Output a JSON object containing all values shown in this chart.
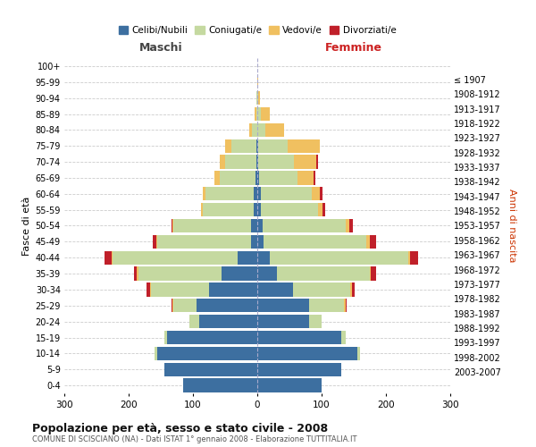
{
  "age_groups": [
    "0-4",
    "5-9",
    "10-14",
    "15-19",
    "20-24",
    "25-29",
    "30-34",
    "35-39",
    "40-44",
    "45-49",
    "50-54",
    "55-59",
    "60-64",
    "65-69",
    "70-74",
    "75-79",
    "80-84",
    "85-89",
    "90-94",
    "95-99",
    "100+"
  ],
  "birth_years": [
    "2003-2007",
    "1998-2002",
    "1993-1997",
    "1988-1992",
    "1983-1987",
    "1978-1982",
    "1973-1977",
    "1968-1972",
    "1963-1967",
    "1958-1962",
    "1953-1957",
    "1948-1952",
    "1943-1947",
    "1938-1942",
    "1933-1937",
    "1928-1932",
    "1923-1927",
    "1918-1922",
    "1913-1917",
    "1908-1912",
    "≤ 1907"
  ],
  "males": {
    "celibi": [
      115,
      145,
      155,
      140,
      90,
      95,
      75,
      55,
      30,
      10,
      10,
      5,
      5,
      3,
      2,
      2,
      0,
      0,
      0,
      0,
      0
    ],
    "coniugati": [
      0,
      0,
      5,
      5,
      15,
      35,
      90,
      130,
      195,
      145,
      120,
      80,
      75,
      55,
      48,
      38,
      8,
      2,
      1,
      0,
      0
    ],
    "vedovi": [
      0,
      0,
      0,
      0,
      0,
      2,
      2,
      2,
      2,
      2,
      2,
      3,
      5,
      8,
      8,
      10,
      5,
      2,
      0,
      0,
      0
    ],
    "divorziati": [
      0,
      0,
      0,
      0,
      0,
      2,
      5,
      5,
      10,
      5,
      2,
      0,
      0,
      0,
      0,
      0,
      0,
      0,
      0,
      0,
      0
    ]
  },
  "females": {
    "nubili": [
      100,
      130,
      155,
      130,
      80,
      80,
      55,
      30,
      20,
      10,
      8,
      5,
      5,
      3,
      2,
      2,
      0,
      0,
      0,
      0,
      0
    ],
    "coniugate": [
      0,
      0,
      5,
      8,
      20,
      55,
      90,
      145,
      215,
      160,
      130,
      90,
      80,
      60,
      55,
      45,
      12,
      5,
      1,
      0,
      0
    ],
    "vedove": [
      0,
      0,
      0,
      0,
      0,
      2,
      2,
      2,
      3,
      5,
      5,
      6,
      12,
      25,
      35,
      50,
      30,
      15,
      3,
      1,
      0
    ],
    "divorziate": [
      0,
      0,
      0,
      0,
      0,
      2,
      5,
      8,
      12,
      10,
      5,
      5,
      5,
      2,
      2,
      0,
      0,
      0,
      0,
      0,
      0
    ]
  },
  "color_celibi": "#3d6fa0",
  "color_coniugati": "#c5d9a0",
  "color_vedovi": "#f0c060",
  "color_divorziati": "#c0202a",
  "title": "Popolazione per età, sesso e stato civile - 2008",
  "subtitle": "COMUNE DI SCISCIANO (NA) - Dati ISTAT 1° gennaio 2008 - Elaborazione TUTTITALIA.IT",
  "xlabel_left": "Maschi",
  "xlabel_right": "Femmine",
  "ylabel_left": "Fasce di età",
  "ylabel_right": "Anni di nascita",
  "xlim": 300,
  "background_color": "#ffffff",
  "grid_color": "#cccccc"
}
